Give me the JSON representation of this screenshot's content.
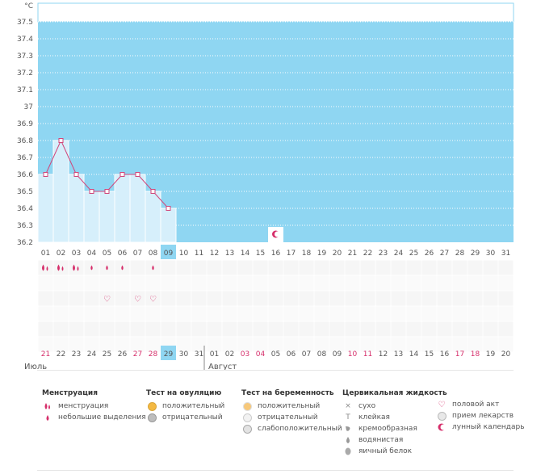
{
  "chart_data": {
    "type": "line",
    "ylabel": "°C",
    "y_ticks": [
      "37.5",
      "37.4",
      "37.3",
      "37.2",
      "37.1",
      "37",
      "36.9",
      "36.8",
      "36.7",
      "36.6",
      "36.5",
      "36.4",
      "36.3",
      "36.2"
    ],
    "ylim": [
      36.2,
      37.5
    ],
    "days": [
      "01",
      "02",
      "03",
      "04",
      "05",
      "06",
      "07",
      "08",
      "09",
      "10",
      "11",
      "12",
      "13",
      "14",
      "15",
      "16",
      "17",
      "18",
      "19",
      "20",
      "21",
      "22",
      "23",
      "24",
      "25",
      "26",
      "27",
      "28",
      "29",
      "30",
      "31"
    ],
    "temperature": [
      36.6,
      36.8,
      36.6,
      36.5,
      36.5,
      36.6,
      36.6,
      36.5,
      36.4
    ],
    "highlighted_day": "09",
    "moon_marker_day": "16",
    "menstruation_heavy_days": [
      "01",
      "02",
      "03"
    ],
    "menstruation_light_days": [
      "04",
      "05",
      "06",
      "08"
    ],
    "intercourse_days": [
      "05",
      "07",
      "08"
    ],
    "dates_row": [
      "21",
      "22",
      "23",
      "24",
      "25",
      "26",
      "27",
      "28",
      "29",
      "30",
      "31",
      "01",
      "02",
      "03",
      "04",
      "05",
      "06",
      "07",
      "08",
      "09",
      "10",
      "11",
      "12",
      "13",
      "14",
      "15",
      "16",
      "17",
      "18",
      "19",
      "20"
    ],
    "dates_red": [
      "21",
      "27",
      "28",
      "03",
      "04",
      "10",
      "11",
      "17",
      "18"
    ],
    "highlighted_date": "29",
    "month_left": "Июль",
    "month_right": "Август",
    "grid": true,
    "colors": {
      "fill": "#8fd6f2",
      "bar": "#d6effb",
      "line": "#d1467a",
      "accent": "#d62f6b"
    }
  },
  "legend": {
    "menstruation": {
      "title": "Менструация",
      "items": [
        "менструация",
        "небольшие выделения"
      ]
    },
    "ovulation": {
      "title": "Тест на овуляцию",
      "items": [
        "положительный",
        "отрицательный"
      ]
    },
    "pregnancy": {
      "title": "Тест на беременность",
      "items": [
        "положительный",
        "отрицательный",
        "слабоположительный"
      ]
    },
    "cervical": {
      "title": "Цервикальная жидкость",
      "items": [
        "сухо",
        "клейкая",
        "кремообразная",
        "водянистая",
        "яичный белок"
      ]
    },
    "other": {
      "items": [
        "половой акт",
        "прием лекарств",
        "лунный календарь"
      ]
    }
  }
}
